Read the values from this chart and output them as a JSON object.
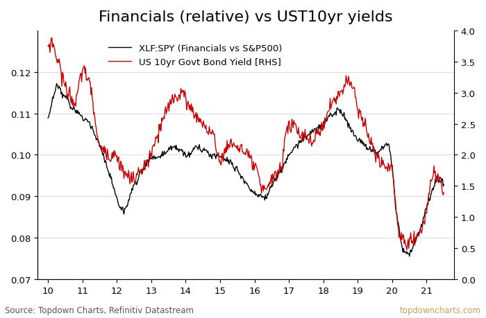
{
  "title": "Financials (relative) vs UST10yr yields",
  "legend_line1": "XLF:SPY (Financials vs S&P500)",
  "legend_line2": "US 10yr Govt Bond Yield [RHS]",
  "source_text": "Source: Topdown Charts, Refinitiv Datastream",
  "watermark": "topdowncharts.com",
  "xlim": [
    9.7,
    21.8
  ],
  "ylim_left": [
    0.07,
    0.13
  ],
  "ylim_right": [
    0.0,
    4.0
  ],
  "xticks": [
    10,
    11,
    12,
    13,
    14,
    15,
    16,
    17,
    18,
    19,
    20,
    21
  ],
  "yticks_left": [
    0.07,
    0.08,
    0.09,
    0.1,
    0.11,
    0.12
  ],
  "yticks_right": [
    0.0,
    0.5,
    1.0,
    1.5,
    2.0,
    2.5,
    3.0,
    3.5,
    4.0
  ],
  "color_xlf": "#000000",
  "color_yield": "#cc0000",
  "linewidth": 1.0,
  "background_color": "#ffffff",
  "title_fontsize": 16,
  "label_fontsize": 9.5,
  "tick_fontsize": 9.5,
  "source_fontsize": 8.5,
  "watermark_fontsize": 8.5,
  "xlf_waypoints": [
    [
      10.0,
      0.11
    ],
    [
      10.25,
      0.118
    ],
    [
      10.5,
      0.115
    ],
    [
      10.7,
      0.112
    ],
    [
      11.0,
      0.11
    ],
    [
      11.3,
      0.107
    ],
    [
      11.7,
      0.098
    ],
    [
      12.0,
      0.09
    ],
    [
      12.2,
      0.087
    ],
    [
      12.5,
      0.093
    ],
    [
      12.8,
      0.097
    ],
    [
      13.0,
      0.099
    ],
    [
      13.3,
      0.1
    ],
    [
      13.6,
      0.102
    ],
    [
      14.0,
      0.1
    ],
    [
      14.3,
      0.102
    ],
    [
      14.6,
      0.101
    ],
    [
      15.0,
      0.1
    ],
    [
      15.3,
      0.099
    ],
    [
      15.7,
      0.094
    ],
    [
      16.0,
      0.09
    ],
    [
      16.3,
      0.089
    ],
    [
      16.6,
      0.093
    ],
    [
      16.9,
      0.097
    ],
    [
      17.0,
      0.099
    ],
    [
      17.3,
      0.102
    ],
    [
      17.6,
      0.104
    ],
    [
      17.9,
      0.106
    ],
    [
      18.2,
      0.109
    ],
    [
      18.5,
      0.11
    ],
    [
      18.7,
      0.107
    ],
    [
      19.0,
      0.103
    ],
    [
      19.3,
      0.101
    ],
    [
      19.6,
      0.1
    ],
    [
      19.9,
      0.102
    ],
    [
      20.0,
      0.097
    ],
    [
      20.1,
      0.087
    ],
    [
      20.3,
      0.078
    ],
    [
      20.5,
      0.076
    ],
    [
      20.6,
      0.078
    ],
    [
      20.8,
      0.082
    ],
    [
      21.0,
      0.088
    ],
    [
      21.2,
      0.093
    ],
    [
      21.4,
      0.095
    ],
    [
      21.5,
      0.093
    ]
  ],
  "yield_waypoints": [
    [
      10.0,
      3.7
    ],
    [
      10.1,
      3.85
    ],
    [
      10.3,
      3.5
    ],
    [
      10.5,
      3.1
    ],
    [
      10.8,
      2.8
    ],
    [
      11.0,
      3.4
    ],
    [
      11.2,
      3.2
    ],
    [
      11.5,
      2.1
    ],
    [
      11.8,
      2.0
    ],
    [
      12.0,
      2.0
    ],
    [
      12.2,
      1.7
    ],
    [
      12.5,
      1.6
    ],
    [
      12.8,
      1.8
    ],
    [
      13.0,
      2.0
    ],
    [
      13.3,
      2.5
    ],
    [
      13.6,
      2.9
    ],
    [
      13.9,
      3.0
    ],
    [
      14.2,
      2.7
    ],
    [
      14.5,
      2.5
    ],
    [
      14.8,
      2.3
    ],
    [
      15.0,
      1.9
    ],
    [
      15.3,
      2.2
    ],
    [
      15.6,
      2.1
    ],
    [
      15.9,
      1.9
    ],
    [
      16.1,
      1.7
    ],
    [
      16.2,
      1.4
    ],
    [
      16.5,
      1.6
    ],
    [
      16.8,
      1.8
    ],
    [
      16.9,
      2.4
    ],
    [
      17.1,
      2.5
    ],
    [
      17.4,
      2.3
    ],
    [
      17.7,
      2.2
    ],
    [
      17.9,
      2.4
    ],
    [
      18.0,
      2.5
    ],
    [
      18.2,
      2.8
    ],
    [
      18.5,
      3.0
    ],
    [
      18.7,
      3.2
    ],
    [
      18.9,
      3.1
    ],
    [
      19.0,
      2.7
    ],
    [
      19.2,
      2.5
    ],
    [
      19.5,
      2.0
    ],
    [
      19.8,
      1.8
    ],
    [
      20.0,
      1.8
    ],
    [
      20.1,
      1.2
    ],
    [
      20.2,
      0.7
    ],
    [
      20.4,
      0.6
    ],
    [
      20.6,
      0.65
    ],
    [
      20.8,
      0.7
    ],
    [
      20.9,
      0.85
    ],
    [
      21.0,
      1.1
    ],
    [
      21.1,
      1.5
    ],
    [
      21.2,
      1.7
    ],
    [
      21.3,
      1.65
    ],
    [
      21.4,
      1.55
    ],
    [
      21.5,
      1.35
    ]
  ]
}
